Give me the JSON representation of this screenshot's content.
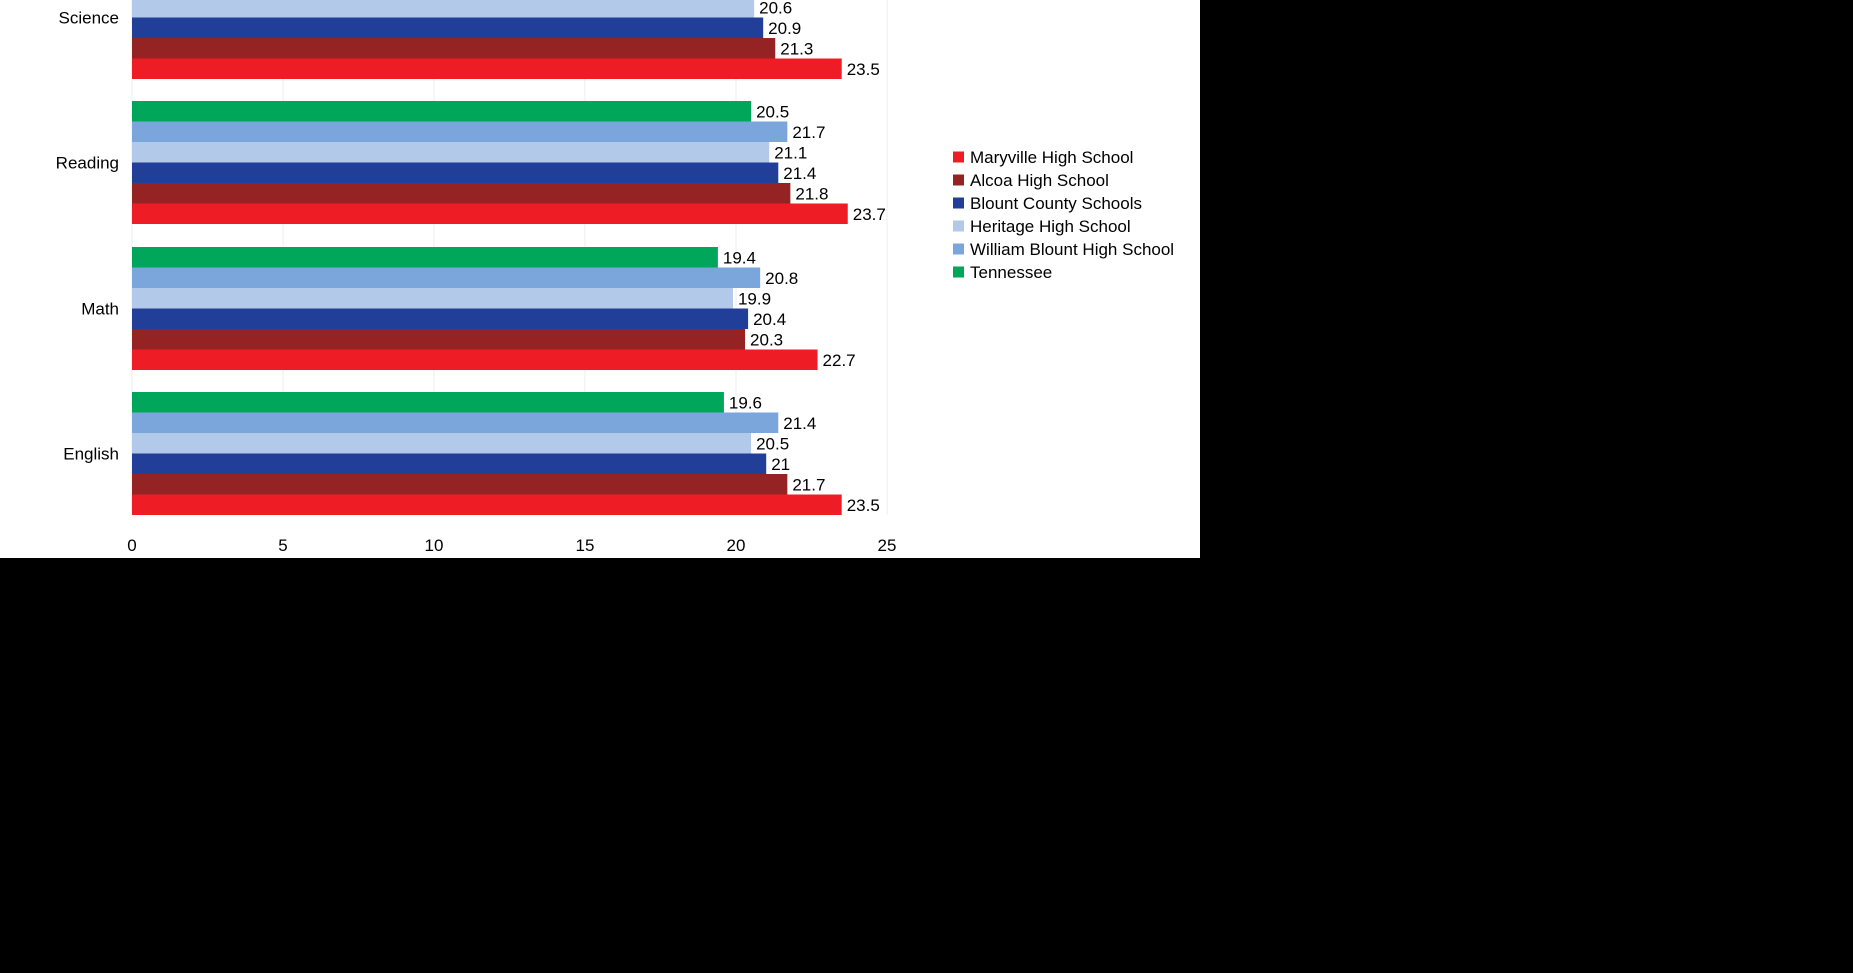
{
  "chart_data": {
    "type": "bar",
    "orientation": "horizontal",
    "categories": [
      "Science",
      "Reading",
      "Math",
      "English"
    ],
    "series": [
      {
        "name": "Maryville High School",
        "color": "#ee1c25",
        "values": [
          23.5,
          23.7,
          22.7,
          23.5
        ]
      },
      {
        "name": "Alcoa High School",
        "color": "#952323",
        "values": [
          21.3,
          21.8,
          20.3,
          21.7
        ]
      },
      {
        "name": "Blount County Schools",
        "color": "#213f99",
        "values": [
          20.9,
          21.4,
          20.4,
          21
        ]
      },
      {
        "name": "Heritage High School",
        "color": "#b2c9ea",
        "values": [
          20.6,
          21.1,
          19.9,
          20.5
        ]
      },
      {
        "name": "William Blount High School",
        "color": "#7ba6db",
        "values": [
          null,
          21.7,
          20.8,
          21.4
        ]
      },
      {
        "name": "Tennessee",
        "color": "#00a65a",
        "values": [
          null,
          20.5,
          19.4,
          19.6
        ]
      }
    ],
    "data_labels": {
      "Science": [
        "23.5",
        "21.3",
        "20.9",
        "20.6",
        "",
        ""
      ],
      "Reading": [
        "23.7",
        "21.8",
        "21.4",
        "21.1",
        "21.7",
        "20.5"
      ],
      "Math": [
        "22.7",
        "20.3",
        "20.4",
        "19.9",
        "20.8",
        "19.4"
      ],
      "English": [
        "23.5",
        "21.7",
        "21",
        "20.5",
        "21.4",
        "19.6"
      ]
    },
    "x_ticks": [
      "0",
      "5",
      "10",
      "15",
      "20",
      "25"
    ],
    "xlim": [
      0,
      25
    ],
    "grid": true,
    "legend_position": "right"
  }
}
